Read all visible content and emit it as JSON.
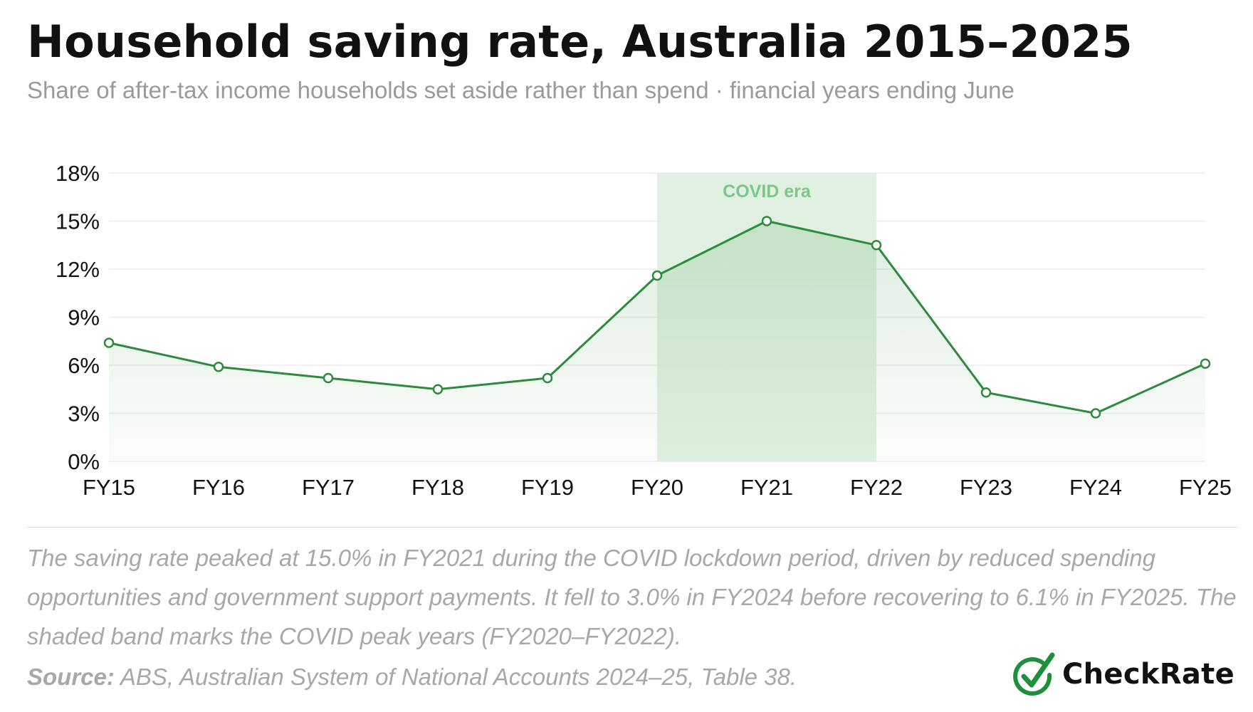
{
  "title": "Household saving rate, Australia 2015–2025",
  "subtitle": "Share of after-tax income households set aside rather than spend · financial years ending June",
  "note": "The saving rate peaked at 15.0% in FY2021 during the COVID lockdown period, driven by reduced spending opportunities and government support payments. It fell to 3.0% in FY2024 before recovering to 6.1% in FY2025. The shaded band marks the COVID peak years (FY2020–FY2022).",
  "source": {
    "label": "Source:",
    "text": " ABS, Australian System of National Accounts 2024–25, Table 38."
  },
  "brand": {
    "name": "CheckRate",
    "icon": "check-circle-icon",
    "color": "#1e8f3a"
  },
  "colors": {
    "line": "#2e8b3e",
    "area": "#2e8b3e",
    "band": "#dcefdc",
    "band_label": "#7cc68a",
    "grid": "#ececec",
    "text": "#111111",
    "muted": "#a8a8a8"
  },
  "chart_data": {
    "type": "line",
    "title": "",
    "xlabel": "",
    "ylabel": "",
    "categories": [
      "FY15",
      "FY16",
      "FY17",
      "FY18",
      "FY19",
      "FY20",
      "FY21",
      "FY22",
      "FY23",
      "FY24",
      "FY25"
    ],
    "series": [
      {
        "values": [
          7.4,
          5.9,
          5.2,
          4.5,
          5.2,
          11.6,
          15.0,
          13.5,
          4.3,
          3.0,
          6.1
        ]
      }
    ],
    "ylim": [
      0,
      18
    ],
    "yticks": [
      0,
      3,
      6,
      9,
      12,
      15,
      18
    ],
    "ytick_labels": [
      "0%",
      "3%",
      "6%",
      "9%",
      "12%",
      "15%",
      "18%"
    ],
    "grid": true,
    "area_fill": true,
    "markers": "hollow-circle",
    "highlight_band": {
      "from": "FY20",
      "to": "FY22",
      "label": "COVID era"
    }
  }
}
